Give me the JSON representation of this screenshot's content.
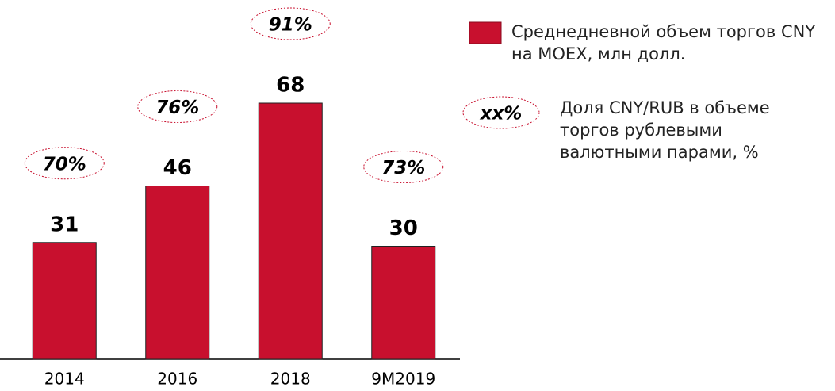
{
  "chart_data": {
    "type": "bar",
    "categories": [
      "2014",
      "2016",
      "2018",
      "9M2019"
    ],
    "series": [
      {
        "name": "Среднедневной объем торгов CNY на MOEX, млн долл.",
        "color": "#c8102e",
        "values": [
          31,
          46,
          68,
          30
        ]
      },
      {
        "name": "Доля CNY/RUB в объеме торгов рублевыми валютными парами, %",
        "color": "#c8102e",
        "values": [
          70,
          76,
          91,
          73
        ],
        "value_labels": [
          "70%",
          "76%",
          "91%",
          "73%"
        ],
        "legend_marker_label": "xx%"
      }
    ],
    "ylim": [
      0,
      80
    ]
  }
}
